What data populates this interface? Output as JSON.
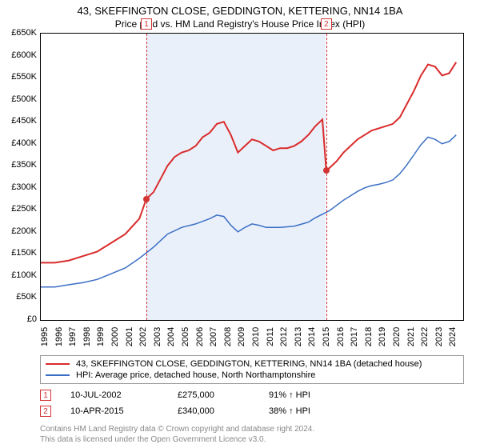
{
  "title": "43, SKEFFINGTON CLOSE, GEDDINGTON, KETTERING, NN14 1BA",
  "subtitle": "Price paid vs. HM Land Registry's House Price Index (HPI)",
  "chart": {
    "type": "line",
    "background_color": "#ffffff",
    "highlight_band_color": "#eaf0fa",
    "marker_color": "#d33333",
    "plot_border_color": "#000000",
    "x_years": [
      1995,
      1996,
      1997,
      1998,
      1999,
      2000,
      2001,
      2002,
      2003,
      2004,
      2005,
      2006,
      2007,
      2008,
      2009,
      2010,
      2011,
      2012,
      2013,
      2014,
      2015,
      2016,
      2017,
      2018,
      2019,
      2020,
      2021,
      2022,
      2023,
      2024
    ],
    "y_ticks": [
      0,
      50000,
      100000,
      150000,
      200000,
      250000,
      300000,
      350000,
      400000,
      450000,
      500000,
      550000,
      600000,
      650000
    ],
    "y_tick_labels": [
      "£0",
      "£50K",
      "£100K",
      "£150K",
      "£200K",
      "£250K",
      "£300K",
      "£350K",
      "£400K",
      "£450K",
      "£500K",
      "£550K",
      "£600K",
      "£650K"
    ],
    "y_max": 650000,
    "x_min": 1995,
    "x_max": 2025,
    "highlight_band": {
      "start": 2002.5,
      "end": 2015.25
    },
    "series": [
      {
        "name": "property-price",
        "label": "43, SKEFFINGTON CLOSE, GEDDINGTON, KETTERING, NN14 1BA (detached house)",
        "color": "#d92b2b",
        "line_width": 2,
        "points": [
          [
            1995,
            130000
          ],
          [
            1996,
            130000
          ],
          [
            1997,
            135000
          ],
          [
            1998,
            145000
          ],
          [
            1999,
            155000
          ],
          [
            2000,
            175000
          ],
          [
            2001,
            195000
          ],
          [
            2002,
            230000
          ],
          [
            2002.5,
            275000
          ],
          [
            2003,
            290000
          ],
          [
            2003.5,
            320000
          ],
          [
            2004,
            350000
          ],
          [
            2004.5,
            370000
          ],
          [
            2005,
            380000
          ],
          [
            2005.5,
            385000
          ],
          [
            2006,
            395000
          ],
          [
            2006.5,
            415000
          ],
          [
            2007,
            425000
          ],
          [
            2007.5,
            445000
          ],
          [
            2008,
            450000
          ],
          [
            2008.5,
            420000
          ],
          [
            2009,
            380000
          ],
          [
            2009.5,
            395000
          ],
          [
            2010,
            410000
          ],
          [
            2010.5,
            405000
          ],
          [
            2011,
            395000
          ],
          [
            2011.5,
            385000
          ],
          [
            2012,
            390000
          ],
          [
            2012.5,
            390000
          ],
          [
            2013,
            395000
          ],
          [
            2013.5,
            405000
          ],
          [
            2014,
            420000
          ],
          [
            2014.5,
            440000
          ],
          [
            2015,
            455000
          ],
          [
            2015.27,
            340000
          ],
          [
            2015.5,
            345000
          ],
          [
            2016,
            360000
          ],
          [
            2016.5,
            380000
          ],
          [
            2017,
            395000
          ],
          [
            2017.5,
            410000
          ],
          [
            2018,
            420000
          ],
          [
            2018.5,
            430000
          ],
          [
            2019,
            435000
          ],
          [
            2019.5,
            440000
          ],
          [
            2020,
            445000
          ],
          [
            2020.5,
            460000
          ],
          [
            2021,
            490000
          ],
          [
            2021.5,
            520000
          ],
          [
            2022,
            555000
          ],
          [
            2022.5,
            580000
          ],
          [
            2023,
            575000
          ],
          [
            2023.5,
            555000
          ],
          [
            2024,
            560000
          ],
          [
            2024.5,
            585000
          ]
        ]
      },
      {
        "name": "hpi",
        "label": "HPI: Average price, detached house, North Northamptonshire",
        "color": "#3b6fc4",
        "line_width": 1.5,
        "points": [
          [
            1995,
            75000
          ],
          [
            1996,
            75000
          ],
          [
            1997,
            80000
          ],
          [
            1998,
            85000
          ],
          [
            1999,
            92000
          ],
          [
            2000,
            105000
          ],
          [
            2001,
            118000
          ],
          [
            2002,
            140000
          ],
          [
            2003,
            165000
          ],
          [
            2004,
            195000
          ],
          [
            2005,
            210000
          ],
          [
            2006,
            218000
          ],
          [
            2007,
            230000
          ],
          [
            2007.5,
            238000
          ],
          [
            2008,
            235000
          ],
          [
            2008.5,
            215000
          ],
          [
            2009,
            200000
          ],
          [
            2009.5,
            210000
          ],
          [
            2010,
            218000
          ],
          [
            2010.5,
            215000
          ],
          [
            2011,
            210000
          ],
          [
            2012,
            210000
          ],
          [
            2013,
            213000
          ],
          [
            2014,
            222000
          ],
          [
            2014.5,
            232000
          ],
          [
            2015,
            240000
          ],
          [
            2015.5,
            248000
          ],
          [
            2016,
            260000
          ],
          [
            2016.5,
            272000
          ],
          [
            2017,
            282000
          ],
          [
            2017.5,
            292000
          ],
          [
            2018,
            300000
          ],
          [
            2018.5,
            305000
          ],
          [
            2019,
            308000
          ],
          [
            2019.5,
            312000
          ],
          [
            2020,
            318000
          ],
          [
            2020.5,
            332000
          ],
          [
            2021,
            352000
          ],
          [
            2021.5,
            375000
          ],
          [
            2022,
            398000
          ],
          [
            2022.5,
            415000
          ],
          [
            2023,
            410000
          ],
          [
            2023.5,
            400000
          ],
          [
            2024,
            405000
          ],
          [
            2024.5,
            420000
          ]
        ]
      }
    ],
    "markers": [
      {
        "id": "1",
        "x": 2002.5,
        "y": 275000
      },
      {
        "id": "2",
        "x": 2015.27,
        "y": 340000
      }
    ]
  },
  "legend": [
    {
      "color": "#d92b2b",
      "label": "43, SKEFFINGTON CLOSE, GEDDINGTON, KETTERING, NN14 1BA (detached house)"
    },
    {
      "color": "#3b6fc4",
      "label": "HPI: Average price, detached house, North Northamptonshire"
    }
  ],
  "sales": [
    {
      "id": "1",
      "date": "10-JUL-2002",
      "price": "£275,000",
      "diff": "91% ↑ HPI"
    },
    {
      "id": "2",
      "date": "10-APR-2015",
      "price": "£340,000",
      "diff": "38% ↑ HPI"
    }
  ],
  "footer": {
    "line1": "Contains HM Land Registry data © Crown copyright and database right 2024.",
    "line2": "This data is licensed under the Open Government Licence v3.0."
  }
}
